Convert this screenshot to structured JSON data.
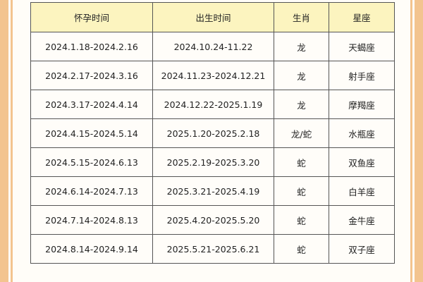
{
  "table": {
    "headers": [
      "怀孕时间",
      "出生时间",
      "生肖",
      "星座"
    ],
    "rows": [
      [
        "2024.1.18-2024.2.16",
        "2024.10.24-11.22",
        "龙",
        "天蝎座"
      ],
      [
        "2024.2.17-2024.3.16",
        "2024.11.23-2024.12.21",
        "龙",
        "射手座"
      ],
      [
        "2024.3.17-2024.4.14",
        "2024.12.22-2025.1.19",
        "龙",
        "摩羯座"
      ],
      [
        "2024.4.15-2024.5.14",
        "2025.1.20-2025.2.18",
        "龙/蛇",
        "水瓶座"
      ],
      [
        "2024.5.15-2024.6.13",
        "2025.2.19-2025.3.20",
        "蛇",
        "双鱼座"
      ],
      [
        "2024.6.14-2024.7.13",
        "2025.3.21-2025.4.19",
        "蛇",
        "白羊座"
      ],
      [
        "2024.7.14-2024.8.13",
        "2025.4.20-2025.5.20",
        "蛇",
        "金牛座"
      ],
      [
        "2024.8.14-2024.9.14",
        "2025.5.21-2025.6.21",
        "蛇",
        "双子座"
      ]
    ]
  },
  "colors": {
    "border_band": "#f3c48f",
    "header_bg": "#fcf4bf"
  }
}
